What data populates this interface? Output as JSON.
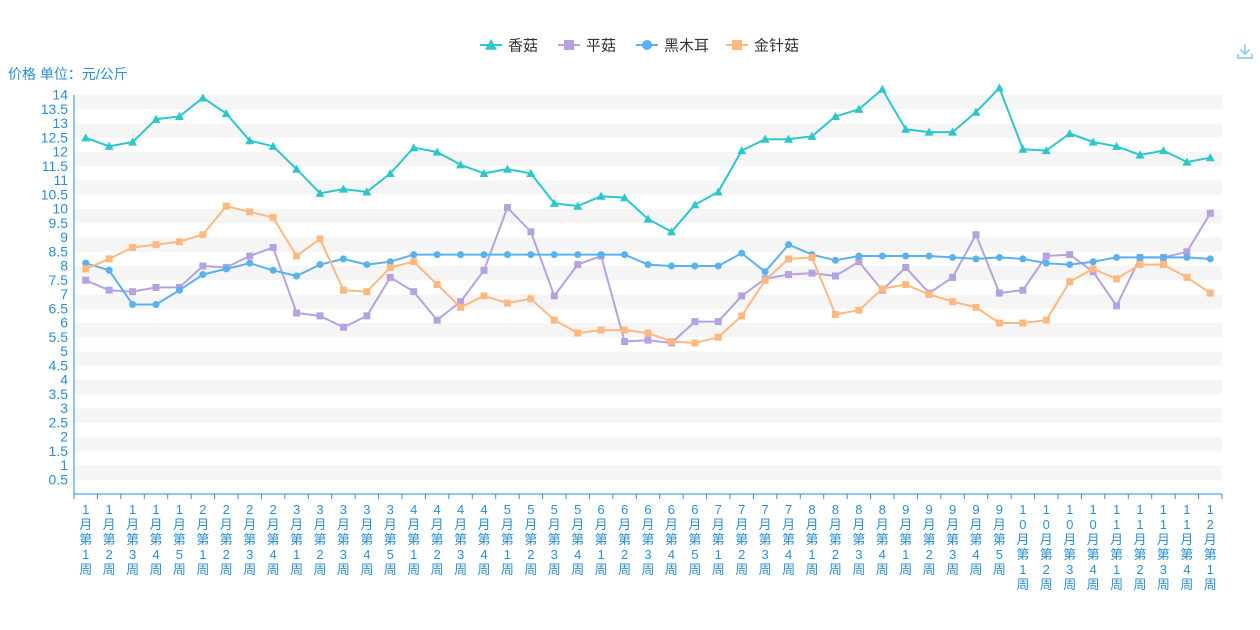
{
  "unit_label": "价格 单位：元/公斤",
  "toolbox": {
    "download_icon": "download-icon"
  },
  "chart_data": {
    "type": "line",
    "title": "",
    "ylabel": "价格 单位：元/公斤",
    "xlabel": "",
    "ylim": [
      0,
      14
    ],
    "ytick_step": 0.5,
    "legend_position": "top-center",
    "colors": {
      "axis": "#2b8fd0",
      "band": "#f5f5f5"
    },
    "categories": [
      "1月第1周",
      "1月第2周",
      "1月第3周",
      "1月第4周",
      "1月第5周",
      "2月第1周",
      "2月第2周",
      "2月第3周",
      "2月第4周",
      "3月第1周",
      "3月第2周",
      "3月第3周",
      "3月第4周",
      "3月第5周",
      "4月第1周",
      "4月第2周",
      "4月第3周",
      "4月第4周",
      "5月第1周",
      "5月第2周",
      "5月第3周",
      "5月第4周",
      "6月第1周",
      "6月第2周",
      "6月第3周",
      "6月第4周",
      "6月第5周",
      "7月第1周",
      "7月第2周",
      "7月第3周",
      "7月第4周",
      "8月第1周",
      "8月第2周",
      "8月第3周",
      "8月第4周",
      "9月第1周",
      "9月第2周",
      "9月第3周",
      "9月第4周",
      "9月第5周",
      "10月第1周",
      "10月第2周",
      "10月第3周",
      "10月第4周",
      "11月第1周",
      "11月第2周",
      "11月第3周",
      "11月第4周",
      "12月第1周"
    ],
    "series": [
      {
        "name": "香菇",
        "color": "#2ec7c9",
        "symbol": "triangle",
        "values": [
          12.5,
          12.2,
          12.35,
          13.15,
          13.25,
          13.9,
          13.35,
          12.4,
          12.2,
          11.4,
          10.55,
          10.7,
          10.6,
          11.25,
          12.15,
          12.0,
          11.55,
          11.25,
          11.4,
          11.25,
          10.2,
          10.1,
          10.45,
          10.4,
          9.65,
          9.2,
          10.15,
          10.6,
          12.05,
          12.45,
          12.45,
          12.55,
          13.25,
          13.5,
          14.2,
          12.8,
          12.7,
          12.7,
          13.4,
          14.25,
          12.1,
          12.05,
          12.65,
          12.35,
          12.2,
          11.9,
          12.05,
          11.65,
          11.8
        ]
      },
      {
        "name": "平菇",
        "color": "#b6a2de",
        "symbol": "square",
        "values": [
          7.5,
          7.15,
          7.1,
          7.25,
          7.25,
          8.0,
          7.95,
          8.35,
          8.65,
          6.35,
          6.25,
          5.85,
          6.25,
          7.6,
          7.1,
          6.1,
          6.75,
          7.85,
          10.05,
          9.2,
          6.95,
          8.05,
          8.35,
          5.35,
          5.4,
          5.3,
          6.05,
          6.05,
          6.95,
          7.55,
          7.7,
          7.75,
          7.65,
          8.15,
          7.15,
          7.95,
          7.05,
          7.6,
          9.1,
          7.05,
          7.15,
          8.35,
          8.4,
          7.8,
          6.6,
          8.3,
          8.3,
          8.5,
          9.85
        ]
      },
      {
        "name": "黑木耳",
        "color": "#5ab1ef",
        "symbol": "circle",
        "values": [
          8.1,
          7.85,
          6.65,
          6.65,
          7.15,
          7.7,
          7.9,
          8.1,
          7.85,
          7.65,
          8.05,
          8.25,
          8.05,
          8.15,
          8.4,
          8.4,
          8.4,
          8.4,
          8.4,
          8.4,
          8.4,
          8.4,
          8.4,
          8.4,
          8.05,
          8.0,
          8.0,
          8.0,
          8.45,
          7.8,
          8.75,
          8.4,
          8.2,
          8.35,
          8.35,
          8.35,
          8.35,
          8.3,
          8.25,
          8.3,
          8.25,
          8.1,
          8.05,
          8.15,
          8.3,
          8.3,
          8.3,
          8.3,
          8.25
        ]
      },
      {
        "name": "金针菇",
        "color": "#ffb980",
        "symbol": "square",
        "values": [
          7.9,
          8.25,
          8.65,
          8.75,
          8.85,
          9.1,
          10.1,
          9.9,
          9.7,
          8.35,
          8.95,
          7.15,
          7.1,
          7.95,
          8.15,
          7.35,
          6.55,
          6.95,
          6.7,
          6.85,
          6.1,
          5.65,
          5.75,
          5.75,
          5.65,
          5.35,
          5.3,
          5.5,
          6.25,
          7.5,
          8.25,
          8.3,
          6.3,
          6.45,
          7.2,
          7.35,
          7.0,
          6.75,
          6.55,
          6.0,
          6.0,
          6.1,
          7.45,
          7.9,
          7.55,
          8.05,
          8.05,
          7.6,
          7.05
        ]
      }
    ]
  }
}
